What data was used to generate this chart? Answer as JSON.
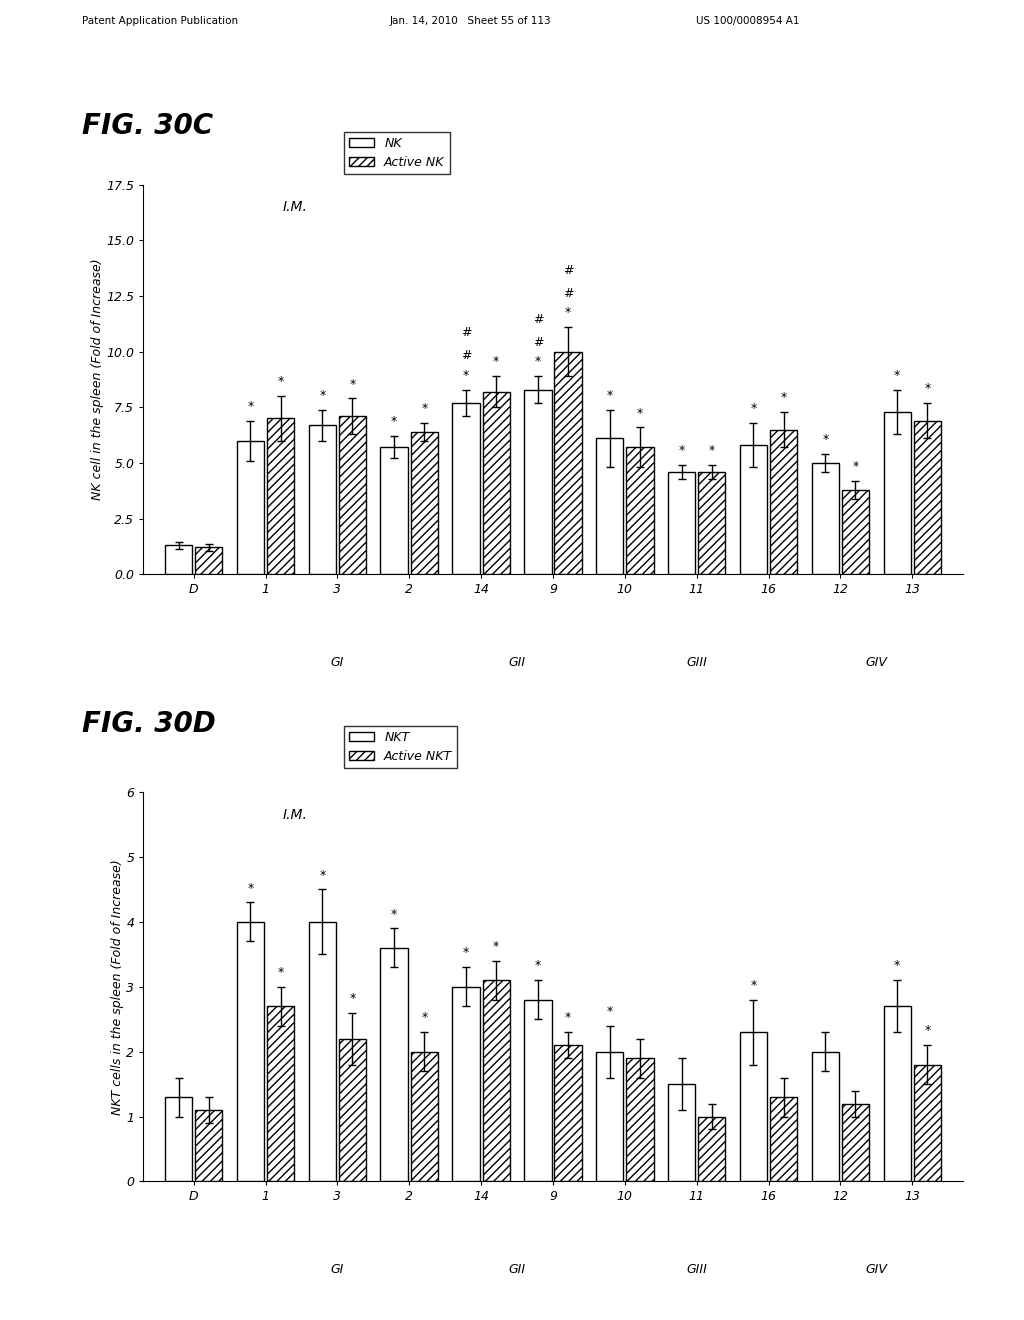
{
  "fig30c": {
    "title": "FIG. 30C",
    "ylabel": "NK cell in the spleen (Fold of Increase)",
    "annotation": "I.M.",
    "legend_labels": [
      "NK",
      "Active NK"
    ],
    "x_labels": [
      "D",
      "1",
      "3",
      "2",
      "14",
      "9",
      "10",
      "11",
      "16",
      "12",
      "13"
    ],
    "nk_values": [
      1.3,
      6.0,
      6.7,
      5.7,
      7.7,
      8.3,
      6.1,
      4.6,
      5.8,
      5.0,
      7.3
    ],
    "active_values": [
      1.2,
      7.0,
      7.1,
      6.4,
      8.2,
      10.0,
      5.7,
      4.6,
      6.5,
      3.8,
      6.9
    ],
    "nk_err": [
      0.15,
      0.9,
      0.7,
      0.5,
      0.6,
      0.6,
      1.3,
      0.3,
      1.0,
      0.4,
      1.0
    ],
    "active_err": [
      0.15,
      1.0,
      0.8,
      0.4,
      0.7,
      1.1,
      0.9,
      0.3,
      0.8,
      0.4,
      0.8
    ],
    "nk_stars": [
      false,
      true,
      true,
      true,
      true,
      true,
      true,
      true,
      true,
      true,
      true
    ],
    "active_stars": [
      false,
      true,
      true,
      true,
      true,
      true,
      true,
      true,
      true,
      true,
      true
    ],
    "nk_hash": [
      false,
      false,
      false,
      false,
      true,
      true,
      false,
      false,
      false,
      false,
      false
    ],
    "active_hash": [
      false,
      false,
      false,
      false,
      false,
      true,
      false,
      false,
      false,
      false,
      false
    ],
    "extra_hash_nk": [
      false,
      false,
      false,
      false,
      true,
      true,
      false,
      false,
      false,
      false,
      false
    ],
    "extra_hash_act": [
      false,
      false,
      false,
      false,
      false,
      true,
      false,
      false,
      false,
      false,
      false
    ],
    "ylim": [
      0,
      17.5
    ],
    "yticks": [
      0.0,
      2.5,
      5.0,
      7.5,
      10.0,
      12.5,
      15.0,
      17.5
    ],
    "ytick_labels": [
      "0.0",
      "2.5",
      "5.0",
      "7.5",
      "10.0",
      "12.5",
      "15.0",
      "17.5"
    ]
  },
  "fig30d": {
    "title": "FIG. 30D",
    "ylabel": "NKT cells in the spleen (Fold of Increase)",
    "annotation": "I.M.",
    "legend_labels": [
      "NKT",
      "Active NKT"
    ],
    "x_labels": [
      "D",
      "1",
      "3",
      "2",
      "14",
      "9",
      "10",
      "11",
      "16",
      "12",
      "13"
    ],
    "nk_values": [
      1.3,
      4.0,
      4.0,
      3.6,
      3.0,
      2.8,
      2.0,
      1.5,
      2.3,
      2.0,
      2.7
    ],
    "active_values": [
      1.1,
      2.7,
      2.2,
      2.0,
      3.1,
      2.1,
      1.9,
      1.0,
      1.3,
      1.2,
      1.8
    ],
    "nk_err": [
      0.3,
      0.3,
      0.5,
      0.3,
      0.3,
      0.3,
      0.4,
      0.4,
      0.5,
      0.3,
      0.4
    ],
    "active_err": [
      0.2,
      0.3,
      0.4,
      0.3,
      0.3,
      0.2,
      0.3,
      0.2,
      0.3,
      0.2,
      0.3
    ],
    "nk_stars": [
      false,
      true,
      true,
      true,
      true,
      true,
      true,
      false,
      true,
      false,
      true
    ],
    "active_stars": [
      false,
      true,
      true,
      true,
      true,
      true,
      false,
      false,
      false,
      false,
      true
    ],
    "nk_hash": [
      false,
      false,
      false,
      false,
      false,
      false,
      false,
      false,
      false,
      false,
      false
    ],
    "active_hash": [
      false,
      false,
      false,
      false,
      false,
      false,
      false,
      false,
      false,
      false,
      false
    ],
    "extra_hash_nk": [
      false,
      false,
      false,
      false,
      false,
      false,
      false,
      false,
      false,
      false,
      false
    ],
    "extra_hash_act": [
      false,
      false,
      false,
      false,
      false,
      false,
      false,
      false,
      false,
      false,
      false
    ],
    "ylim": [
      0,
      6
    ],
    "yticks": [
      0,
      1,
      2,
      3,
      4,
      5,
      6
    ],
    "ytick_labels": [
      "0",
      "1",
      "2",
      "3",
      "4",
      "5",
      "6"
    ]
  },
  "header": "Patent Application Publication    Jan. 14, 2010  Sheet 55 of 113    US 100/0008954 A1",
  "header_left": "Patent Application Publication",
  "header_mid": "Jan. 14, 2010   Sheet 55 of 113",
  "header_right": "US 100/0008954 A1"
}
